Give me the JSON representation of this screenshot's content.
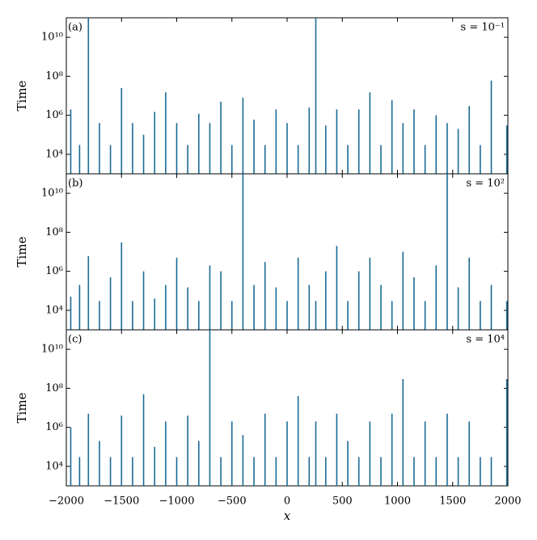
{
  "chart_data": [
    {
      "type": "stem",
      "panel_label": "(a)",
      "annotation": "s = 10⁻¹",
      "ylabel": "Time",
      "log_y": true,
      "color": "#1a6a96",
      "xlim": [
        -2000,
        2000
      ],
      "ylim": [
        1000,
        100000000000
      ],
      "yticks": [
        {
          "value": 10000,
          "label": "10⁴"
        },
        {
          "value": 1000000,
          "label": "10⁶"
        },
        {
          "value": 100000000,
          "label": "10⁸"
        },
        {
          "value": 10000000000,
          "label": "10¹⁰"
        }
      ],
      "x": [
        -1960,
        -1880,
        -1800,
        -1700,
        -1600,
        -1500,
        -1400,
        -1300,
        -1200,
        -1100,
        -1000,
        -900,
        -800,
        -700,
        -600,
        -500,
        -400,
        -300,
        -200,
        -100,
        0,
        100,
        200,
        260,
        350,
        450,
        550,
        650,
        750,
        850,
        950,
        1050,
        1150,
        1250,
        1350,
        1450,
        1550,
        1650,
        1750,
        1850,
        1990
      ],
      "values": [
        2000000.0,
        30000.0,
        100000000000.0,
        400000.0,
        30000.0,
        25000000.0,
        400000.0,
        100000.0,
        1500000.0,
        15000000.0,
        400000.0,
        30000.0,
        1200000.0,
        400000.0,
        5000000.0,
        30000.0,
        8000000.0,
        600000.0,
        30000.0,
        2000000.0,
        400000.0,
        30000.0,
        2500000.0,
        100000000000.0,
        300000.0,
        2000000.0,
        30000.0,
        2000000.0,
        15000000.0,
        30000.0,
        6000000.0,
        400000.0,
        2000000.0,
        30000.0,
        1000000.0,
        400000.0,
        200000.0,
        3000000.0,
        30000.0,
        60000000.0,
        300000.0
      ]
    },
    {
      "type": "stem",
      "panel_label": "(b)",
      "annotation": "s = 10²",
      "ylabel": "Time",
      "log_y": true,
      "color": "#1a6a96",
      "xlim": [
        -2000,
        2000
      ],
      "ylim": [
        1000,
        100000000000
      ],
      "yticks": [
        {
          "value": 10000,
          "label": "10⁴"
        },
        {
          "value": 1000000,
          "label": "10⁶"
        },
        {
          "value": 100000000,
          "label": "10⁸"
        },
        {
          "value": 10000000000,
          "label": "10¹⁰"
        }
      ],
      "x": [
        -1960,
        -1880,
        -1800,
        -1700,
        -1600,
        -1500,
        -1400,
        -1300,
        -1200,
        -1100,
        -1000,
        -900,
        -800,
        -700,
        -600,
        -500,
        -400,
        -300,
        -200,
        -100,
        0,
        100,
        200,
        260,
        350,
        450,
        550,
        650,
        750,
        850,
        950,
        1050,
        1150,
        1250,
        1350,
        1450,
        1550,
        1650,
        1750,
        1850,
        1990
      ],
      "values": [
        50000.0,
        200000.0,
        6000000.0,
        30000.0,
        500000.0,
        30000000.0,
        30000.0,
        1000000.0,
        40000.0,
        200000.0,
        5000000.0,
        150000.0,
        30000.0,
        2000000.0,
        1000000.0,
        30000.0,
        100000000000.0,
        200000.0,
        3000000.0,
        150000.0,
        30000.0,
        5000000.0,
        200000.0,
        30000.0,
        1000000.0,
        20000000.0,
        30000.0,
        1000000.0,
        5000000.0,
        200000.0,
        30000.0,
        10000000.0,
        500000.0,
        30000.0,
        2000000.0,
        100000000000.0,
        150000.0,
        5000000.0,
        30000.0,
        200000.0,
        30000.0
      ]
    },
    {
      "type": "stem",
      "panel_label": "(c)",
      "annotation": "s = 10⁴",
      "ylabel": "Time",
      "xlabel": "x",
      "log_y": true,
      "color": "#1a6a96",
      "xlim": [
        -2000,
        2000
      ],
      "ylim": [
        1000,
        100000000000
      ],
      "xticks": [
        {
          "value": -2000,
          "label": "−2000"
        },
        {
          "value": -1500,
          "label": "−1500"
        },
        {
          "value": -1000,
          "label": "−1000"
        },
        {
          "value": -500,
          "label": "−500"
        },
        0,
        500,
        1000,
        1500,
        2000
      ],
      "yticks": [
        {
          "value": 10000,
          "label": "10⁴"
        },
        {
          "value": 1000000,
          "label": "10⁶"
        },
        {
          "value": 100000000,
          "label": "10⁸"
        },
        {
          "value": 10000000000,
          "label": "10¹⁰"
        }
      ],
      "x": [
        -1960,
        -1880,
        -1800,
        -1700,
        -1600,
        -1500,
        -1400,
        -1300,
        -1200,
        -1100,
        -1000,
        -900,
        -800,
        -700,
        -600,
        -500,
        -400,
        -300,
        -200,
        -100,
        0,
        100,
        200,
        260,
        350,
        450,
        550,
        650,
        750,
        850,
        950,
        1050,
        1150,
        1250,
        1350,
        1450,
        1550,
        1650,
        1750,
        1850,
        1990
      ],
      "values": [
        1000000.0,
        30000.0,
        5000000.0,
        200000.0,
        30000.0,
        4000000.0,
        30000.0,
        50000000.0,
        100000.0,
        2000000.0,
        30000.0,
        4000000.0,
        200000.0,
        100000000000.0,
        30000.0,
        2000000.0,
        400000.0,
        30000.0,
        5000000.0,
        30000.0,
        2000000.0,
        40000000.0,
        30000.0,
        2000000.0,
        30000.0,
        5000000.0,
        200000.0,
        30000.0,
        2000000.0,
        30000.0,
        5000000.0,
        300000000.0,
        30000.0,
        2000000.0,
        30000.0,
        5000000.0,
        30000.0,
        2000000.0,
        30000.0,
        30000.0,
        300000000.0
      ]
    }
  ]
}
